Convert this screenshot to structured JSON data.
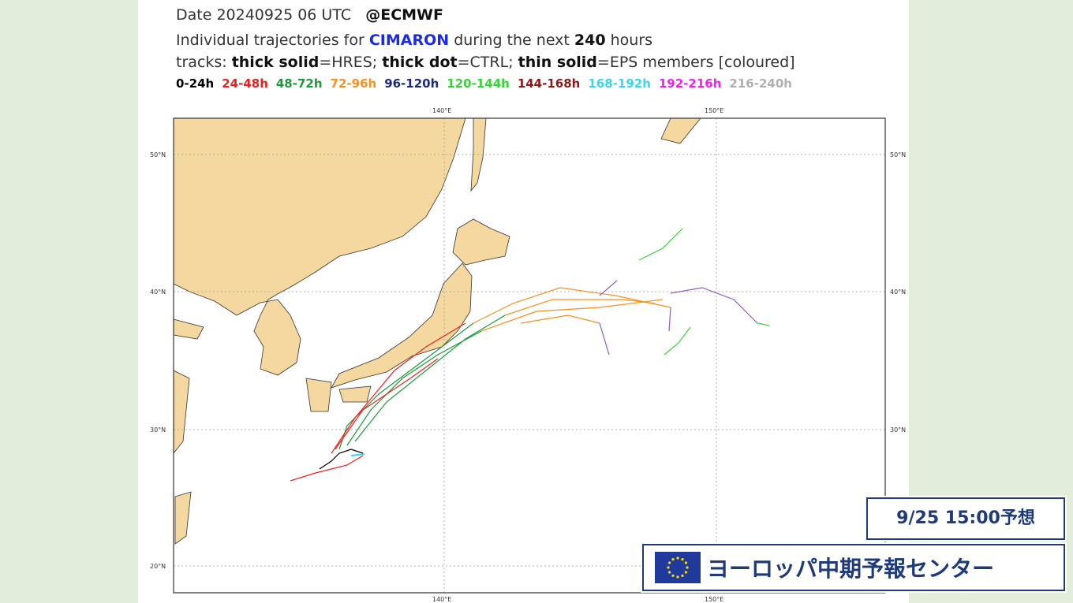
{
  "header": {
    "date_line": "Date 20240925 06 UTC",
    "source": "@ECMWF",
    "line2": [
      "Individual trajectories for",
      "CIMARON",
      "during the next",
      "240",
      "hours"
    ],
    "line3": [
      "tracks: ",
      "thick solid",
      "=HRES; ",
      "thick dot",
      "=CTRL; ",
      "thin solid",
      "=EPS members [coloured]"
    ]
  },
  "legend": [
    {
      "label": "0-24h",
      "color": "#000000"
    },
    {
      "label": "24-48h",
      "color": "#e8201f"
    },
    {
      "label": "48-72h",
      "color": "#1a9a3a"
    },
    {
      "label": "72-96h",
      "color": "#f5911e"
    },
    {
      "label": "96-120h",
      "color": "#1b2a7a"
    },
    {
      "label": "120-144h",
      "color": "#3bd13b"
    },
    {
      "label": "144-168h",
      "color": "#8b1a1a"
    },
    {
      "label": "168-192h",
      "color": "#33d8f0"
    },
    {
      "label": "192-216h",
      "color": "#f020f0"
    },
    {
      "label": "216-240h",
      "color": "#b0b0b0"
    }
  ],
  "map": {
    "lat_labels": [
      "50°N",
      "40°N",
      "30°N",
      "20°N"
    ],
    "lon_labels": [
      "140°E",
      "150°E"
    ]
  },
  "overlay": {
    "forecast_time": "9/25 15:00予想",
    "source_name": "ヨーロッパ中期予報センター"
  }
}
